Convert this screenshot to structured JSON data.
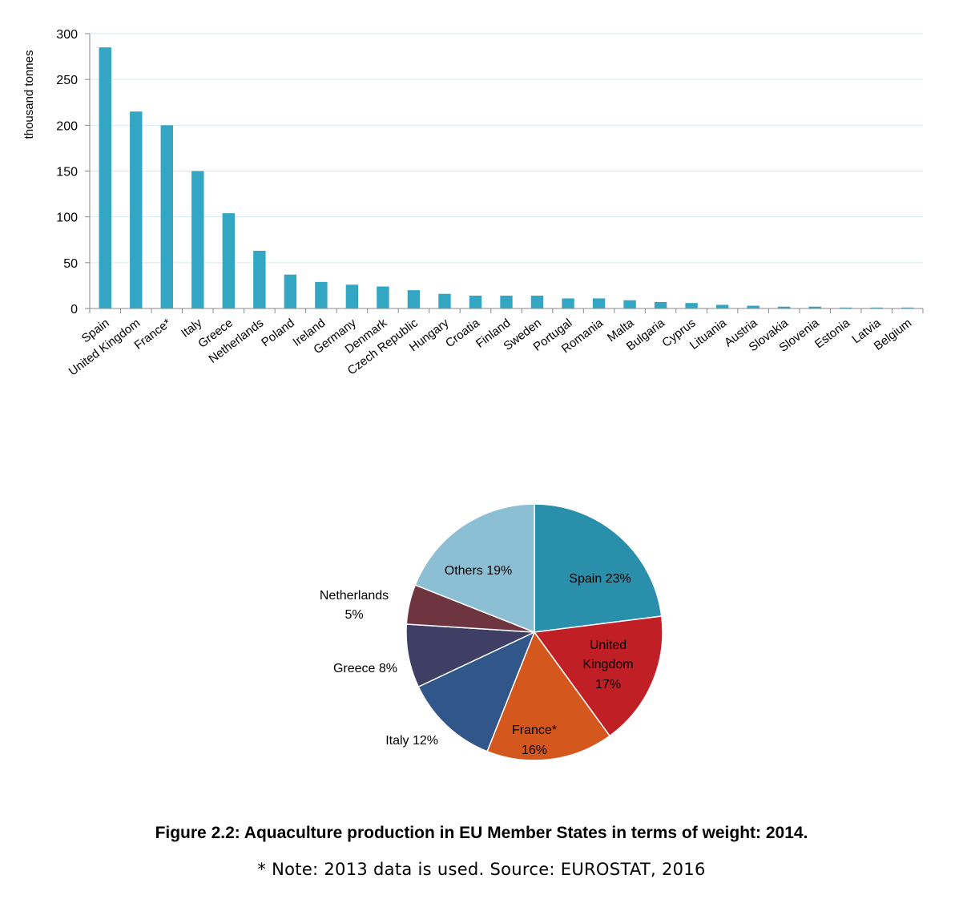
{
  "chart_data": [
    {
      "type": "bar",
      "ylabel": "thousand tonnes",
      "ylim": [
        0,
        300
      ],
      "yticks": [
        "0",
        "50",
        "100",
        "150",
        "200",
        "250",
        "300"
      ],
      "grid": true,
      "color": "#33a6c4",
      "categories": [
        "Spain",
        "United Kingdom",
        "France*",
        "Italy",
        "Greece",
        "Netherlands",
        "Poland",
        "Ireland",
        "Germany",
        "Denmark",
        "Czech Republic",
        "Hungary",
        "Croatia",
        "Finland",
        "Sweden",
        "Portugal",
        "Romania",
        "Malta",
        "Bulgaria",
        "Cyprus",
        "Lituania",
        "Austria",
        "Slovakia",
        "Slovenia",
        "Estonia",
        "Latvia",
        "Belgium"
      ],
      "values": [
        285,
        215,
        200,
        150,
        104,
        63,
        37,
        29,
        26,
        24,
        20,
        16,
        14,
        14,
        14,
        11,
        11,
        9,
        7,
        6,
        4,
        3,
        2,
        2,
        1,
        1,
        1
      ]
    },
    {
      "type": "pie",
      "slices": [
        {
          "label": "Spain 23%",
          "value": 23,
          "color": "#2a8fab"
        },
        {
          "label": "United Kingdom 17%",
          "value": 17,
          "color": "#c01f26"
        },
        {
          "label": "France* 16%",
          "value": 16,
          "color": "#d4571e"
        },
        {
          "label": "Italy 12%",
          "value": 12,
          "color": "#31578a"
        },
        {
          "label": "Greece 8%",
          "value": 8,
          "color": "#3f3f66"
        },
        {
          "label": "Netherlands 5%",
          "value": 5,
          "color": "#6e3540"
        },
        {
          "label": "Others 19%",
          "value": 19,
          "color": "#8cbfd3"
        }
      ]
    }
  ],
  "caption": {
    "title": "Figure 2.2: Aquaculture production in EU Member States in terms of weight: 2014.",
    "note": "* Note: 2013 data is used. Source: EUROSTAT, 2016"
  },
  "pie_labels": {
    "spain": "Spain 23%",
    "uk_1": "United",
    "uk_2": "Kingdom",
    "uk_3": "17%",
    "france_1": "France*",
    "france_2": "16%",
    "italy": "Italy 12%",
    "greece": "Greece 8%",
    "netherlands_1": "Netherlands",
    "netherlands_2": "5%",
    "others": "Others 19%"
  }
}
